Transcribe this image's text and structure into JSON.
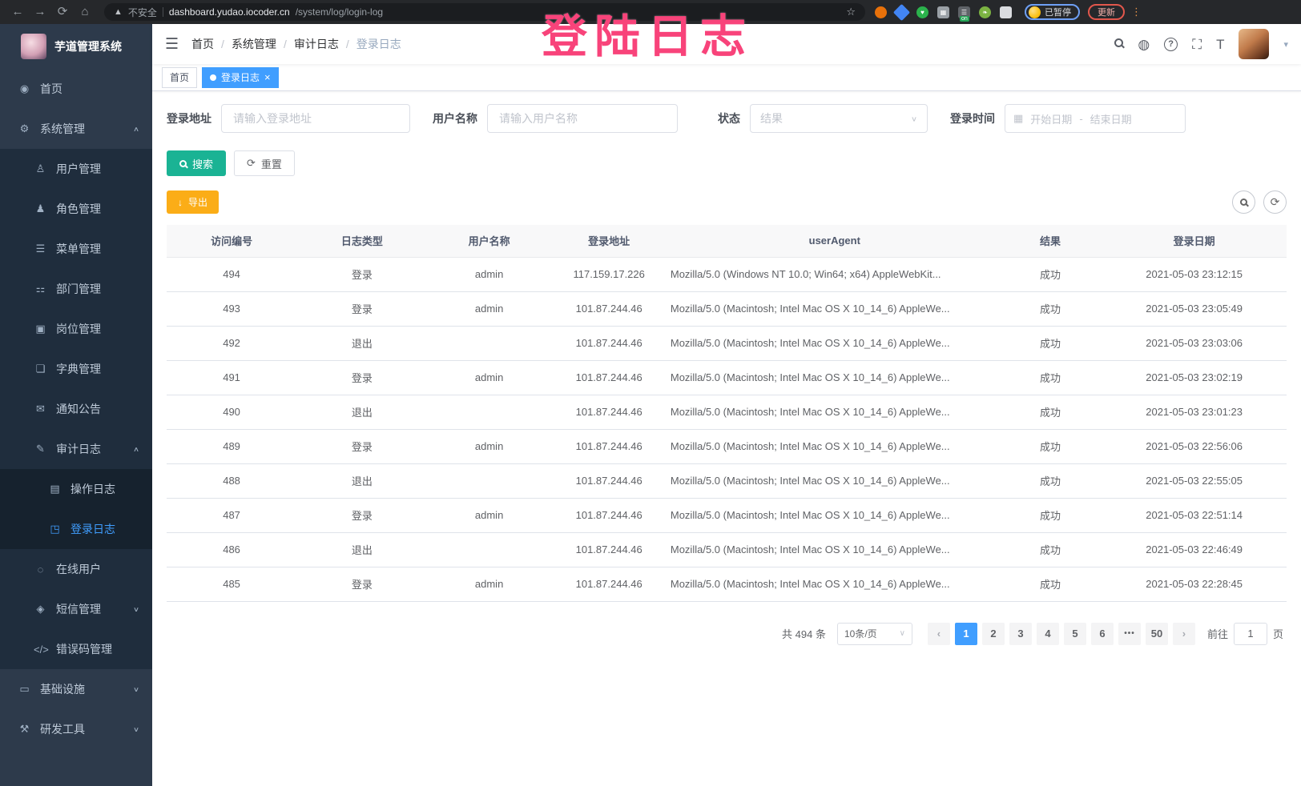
{
  "colors": {
    "accent": "#409eff",
    "search_button": "#1AB394",
    "export_button": "#FBAD17",
    "annotation": "#F8437A",
    "sidebar_bg": "#2d3a4b",
    "submenu_bg": "#1f2d3d"
  },
  "browser": {
    "icons": {
      "back": "←",
      "forward": "→",
      "reload": "⟳",
      "home": "⌂",
      "warning": "▲",
      "star": "☆",
      "menu": "⋮"
    },
    "security_warning": "不安全",
    "url_host": "dashboard.yudao.iocoder.cn",
    "url_path": "/system/log/login-log",
    "paused_badge": "已暂停",
    "update_button": "更新",
    "extensions": [
      {
        "name": "extension-orange-icon",
        "color": "#e8710a",
        "shape": "circle",
        "glyph": ""
      },
      {
        "name": "extension-blue-diamond-icon",
        "color": "#4285f4",
        "shape": "diamond",
        "glyph": ""
      },
      {
        "name": "extension-green-heart-icon",
        "color": "#2bb24c",
        "shape": "circle",
        "glyph": "♥"
      },
      {
        "name": "extension-grid-icon",
        "color": "#9aa0a6",
        "shape": "square",
        "glyph": "▦"
      },
      {
        "name": "extension-list-on-icon",
        "color": "#5f6368",
        "shape": "square",
        "glyph": "☰",
        "badge": "on"
      },
      {
        "name": "extension-leaf-icon",
        "color": "#7cb342",
        "shape": "circle",
        "glyph": "❧"
      },
      {
        "name": "extension-puzzle-icon",
        "color": "#dadce0",
        "shape": "square",
        "glyph": ""
      }
    ]
  },
  "annotation": {
    "text": "登陆日志"
  },
  "sidebar": {
    "title": "芋道管理系统",
    "items": [
      {
        "label": "首页",
        "icon": "dashboard-icon",
        "glyph": "◉",
        "level": 0
      },
      {
        "label": "系统管理",
        "icon": "system-gear-icon",
        "glyph": "⚙",
        "level": 0,
        "arrow": "up"
      },
      {
        "label": "用户管理",
        "icon": "user-icon",
        "glyph": "♙",
        "level": 1
      },
      {
        "label": "角色管理",
        "icon": "roles-icon",
        "glyph": "♟",
        "level": 1
      },
      {
        "label": "菜单管理",
        "icon": "menu-list-icon",
        "glyph": "☰",
        "level": 1
      },
      {
        "label": "部门管理",
        "icon": "dept-tree-icon",
        "glyph": "⚏",
        "level": 1
      },
      {
        "label": "岗位管理",
        "icon": "post-badge-icon",
        "glyph": "▣",
        "level": 1
      },
      {
        "label": "字典管理",
        "icon": "dict-book-icon",
        "glyph": "❏",
        "level": 1
      },
      {
        "label": "通知公告",
        "icon": "notice-message-icon",
        "glyph": "✉",
        "level": 1
      },
      {
        "label": "审计日志",
        "icon": "audit-log-icon",
        "glyph": "✎",
        "level": 1,
        "arrow": "up"
      },
      {
        "label": "操作日志",
        "icon": "operate-log-icon",
        "glyph": "▤",
        "level": 2
      },
      {
        "label": "登录日志",
        "icon": "login-log-icon",
        "glyph": "◳",
        "level": 2,
        "active": true
      },
      {
        "label": "在线用户",
        "icon": "online-users-icon",
        "glyph": "◌",
        "level": 1
      },
      {
        "label": "短信管理",
        "icon": "sms-shield-icon",
        "glyph": "◈",
        "level": 1,
        "arrow": "down"
      },
      {
        "label": "错误码管理",
        "icon": "errorcode-icon",
        "glyph": "</>",
        "level": 1
      },
      {
        "label": "基础设施",
        "icon": "infra-monitor-icon",
        "glyph": "▭",
        "level": 0,
        "arrow": "down"
      },
      {
        "label": "研发工具",
        "icon": "devtools-hammer-icon",
        "glyph": "⚒",
        "level": 0,
        "arrow": "down"
      }
    ]
  },
  "header": {
    "hamburger": "☰",
    "breadcrumb": [
      "首页",
      "系统管理",
      "审计日志",
      "登录日志"
    ],
    "icons": {
      "github": "◍",
      "help": "?",
      "fullscreen": "⛶",
      "fontsize": "T",
      "caret": "▾"
    }
  },
  "tags": [
    {
      "label": "首页",
      "active": false
    },
    {
      "label": "登录日志",
      "active": true,
      "close": "×"
    }
  ],
  "filters": {
    "address_label": "登录地址",
    "address_placeholder": "请输入登录地址",
    "username_label": "用户名称",
    "username_placeholder": "请输入用户名称",
    "status_label": "状态",
    "status_placeholder": "结果",
    "status_caret": "∨",
    "time_label": "登录时间",
    "calendar_glyph": "▦",
    "start_placeholder": "开始日期",
    "range_separator": "-",
    "end_placeholder": "结束日期",
    "search_label": "搜索",
    "reset_label": "重置",
    "reset_glyph": "⟳",
    "export_label": "导出",
    "export_glyph": "↓",
    "refresh_mini_glyph": "⟳"
  },
  "table": {
    "headers": [
      "访问编号",
      "日志类型",
      "用户名称",
      "登录地址",
      "userAgent",
      "结果",
      "登录日期"
    ],
    "rows": [
      [
        "494",
        "登录",
        "admin",
        "117.159.17.226",
        "Mozilla/5.0 (Windows NT 10.0; Win64; x64) AppleWebKit...",
        "成功",
        "2021-05-03 23:12:15"
      ],
      [
        "493",
        "登录",
        "admin",
        "101.87.244.46",
        "Mozilla/5.0 (Macintosh; Intel Mac OS X 10_14_6) AppleWe...",
        "成功",
        "2021-05-03 23:05:49"
      ],
      [
        "492",
        "退出",
        "",
        "101.87.244.46",
        "Mozilla/5.0 (Macintosh; Intel Mac OS X 10_14_6) AppleWe...",
        "成功",
        "2021-05-03 23:03:06"
      ],
      [
        "491",
        "登录",
        "admin",
        "101.87.244.46",
        "Mozilla/5.0 (Macintosh; Intel Mac OS X 10_14_6) AppleWe...",
        "成功",
        "2021-05-03 23:02:19"
      ],
      [
        "490",
        "退出",
        "",
        "101.87.244.46",
        "Mozilla/5.0 (Macintosh; Intel Mac OS X 10_14_6) AppleWe...",
        "成功",
        "2021-05-03 23:01:23"
      ],
      [
        "489",
        "登录",
        "admin",
        "101.87.244.46",
        "Mozilla/5.0 (Macintosh; Intel Mac OS X 10_14_6) AppleWe...",
        "成功",
        "2021-05-03 22:56:06"
      ],
      [
        "488",
        "退出",
        "",
        "101.87.244.46",
        "Mozilla/5.0 (Macintosh; Intel Mac OS X 10_14_6) AppleWe...",
        "成功",
        "2021-05-03 22:55:05"
      ],
      [
        "487",
        "登录",
        "admin",
        "101.87.244.46",
        "Mozilla/5.0 (Macintosh; Intel Mac OS X 10_14_6) AppleWe...",
        "成功",
        "2021-05-03 22:51:14"
      ],
      [
        "486",
        "退出",
        "",
        "101.87.244.46",
        "Mozilla/5.0 (Macintosh; Intel Mac OS X 10_14_6) AppleWe...",
        "成功",
        "2021-05-03 22:46:49"
      ],
      [
        "485",
        "登录",
        "admin",
        "101.87.244.46",
        "Mozilla/5.0 (Macintosh; Intel Mac OS X 10_14_6) AppleWe...",
        "成功",
        "2021-05-03 22:28:45"
      ]
    ]
  },
  "pagination": {
    "total_label": "共 494 条",
    "page_size": "10条/页",
    "prev": "‹",
    "next": "›",
    "pages": [
      "1",
      "2",
      "3",
      "4",
      "5",
      "6",
      "•••",
      "50"
    ],
    "active_page": "1",
    "goto_label": "前往",
    "goto_value": "1",
    "page_suffix": "页"
  }
}
